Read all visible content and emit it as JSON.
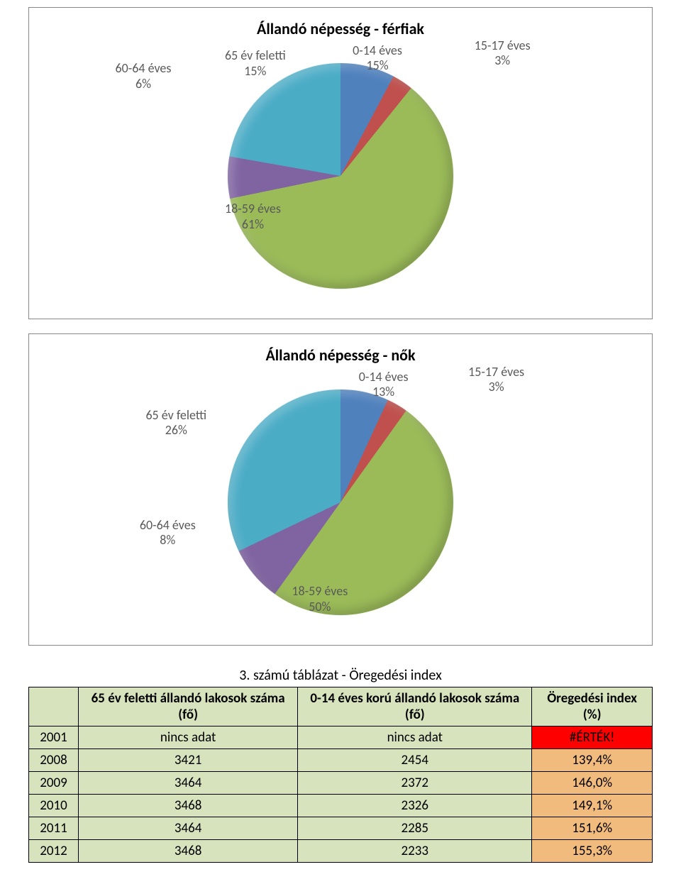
{
  "chart1": {
    "title": "Állandó népesség - férfiak",
    "type": "pie",
    "background_color": "#ffffff",
    "label_color": "#595959",
    "label_fontsize": 18,
    "slices": [
      {
        "label_line1": "0-14 éves",
        "label_line2": "15%",
        "value": 15,
        "color": "#4f81bd"
      },
      {
        "label_line1": "15-17 éves",
        "label_line2": "3%",
        "value": 3,
        "color": "#c0504d"
      },
      {
        "label_line1": "18-59 éves",
        "label_line2": "61%",
        "value": 61,
        "color": "#9bbb59"
      },
      {
        "label_line1": "60-64 éves",
        "label_line2": "6%",
        "value": 6,
        "color": "#8064a2"
      },
      {
        "label_line1": "65 év feletti",
        "label_line2": "15%",
        "value": 15,
        "color": "#4bacc6"
      }
    ]
  },
  "chart2": {
    "title": "Állandó népesség - nők",
    "type": "pie",
    "background_color": "#ffffff",
    "label_color": "#595959",
    "label_fontsize": 18,
    "slices": [
      {
        "label_line1": "0-14 éves",
        "label_line2": "13%",
        "value": 13,
        "color": "#4f81bd"
      },
      {
        "label_line1": "15-17 éves",
        "label_line2": "3%",
        "value": 3,
        "color": "#c0504d"
      },
      {
        "label_line1": "18-59 éves",
        "label_line2": "50%",
        "value": 50,
        "color": "#9bbb59"
      },
      {
        "label_line1": "60-64 éves",
        "label_line2": "8%",
        "value": 8,
        "color": "#8064a2"
      },
      {
        "label_line1": "65 év feletti",
        "label_line2": "26%",
        "value": 26,
        "color": "#4bacc6"
      }
    ]
  },
  "table": {
    "title": "3. számú táblázat - Öregedési index",
    "header_bg": "#d6e3bc",
    "body_green_bg": "#d6e3bc",
    "body_salmon_bg": "#f2bb7e",
    "body_red_bg": "#ff0000",
    "columns": [
      "",
      "65 év feletti állandó lakosok száma (fő)",
      "0-14 éves korú állandó lakosok száma (fő)",
      "Öregedési index (%)"
    ],
    "rows": [
      {
        "year": "2001",
        "c1": "nincs adat",
        "c2": "nincs adat",
        "c3": "#ÉRTÉK!",
        "c3_style": "red"
      },
      {
        "year": "2008",
        "c1": "3421",
        "c2": "2454",
        "c3": "139,4%",
        "c3_style": "salmon"
      },
      {
        "year": "2009",
        "c1": "3464",
        "c2": "2372",
        "c3": "146,0%",
        "c3_style": "salmon"
      },
      {
        "year": "2010",
        "c1": "3468",
        "c2": "2326",
        "c3": "149,1%",
        "c3_style": "salmon"
      },
      {
        "year": "2011",
        "c1": "3464",
        "c2": "2285",
        "c3": "151,6%",
        "c3_style": "salmon"
      },
      {
        "year": "2012",
        "c1": "3468",
        "c2": "2233",
        "c3": "155,3%",
        "c3_style": "salmon"
      }
    ]
  }
}
